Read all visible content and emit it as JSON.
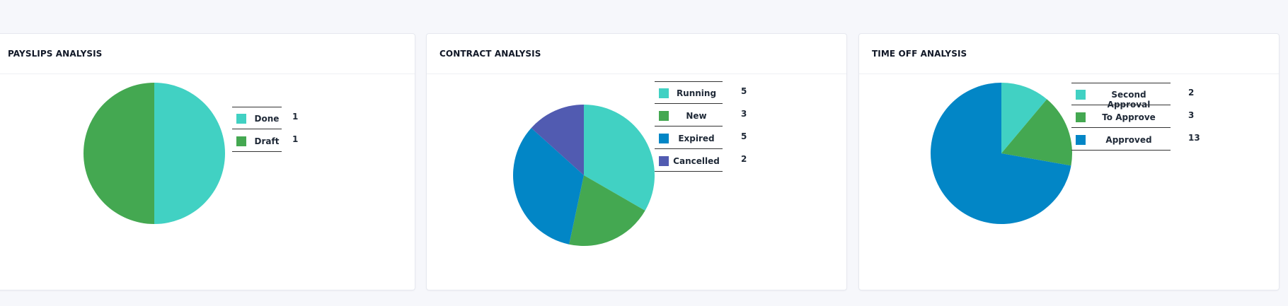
{
  "cards": [
    {
      "title": "PAYSLIPS ANALYSIS",
      "chart_data": {
        "type": "pie",
        "title": "PAYSLIPS ANALYSIS",
        "labels": [
          "Done",
          "Draft"
        ],
        "values": [
          1,
          1
        ],
        "colors": [
          "#41d1c3",
          "#44a851"
        ],
        "legend": "right"
      }
    },
    {
      "title": "CONTRACT ANALYSIS",
      "chart_data": {
        "type": "pie",
        "title": "CONTRACT ANALYSIS",
        "labels": [
          "Running",
          "New",
          "Expired",
          "Cancelled"
        ],
        "values": [
          5,
          3,
          5,
          2
        ],
        "colors": [
          "#41d1c3",
          "#44a851",
          "#0286c6",
          "#515bb1"
        ],
        "legend": "right"
      }
    },
    {
      "title": "TIME OFF ANALYSIS",
      "chart_data": {
        "type": "pie",
        "title": "TIME OFF ANALYSIS",
        "labels": [
          "Second Approval",
          "To Approve",
          "Approved"
        ],
        "values": [
          2,
          3,
          13
        ],
        "colors": [
          "#41d1c3",
          "#44a851",
          "#0286c6"
        ],
        "legend": "right"
      }
    }
  ]
}
